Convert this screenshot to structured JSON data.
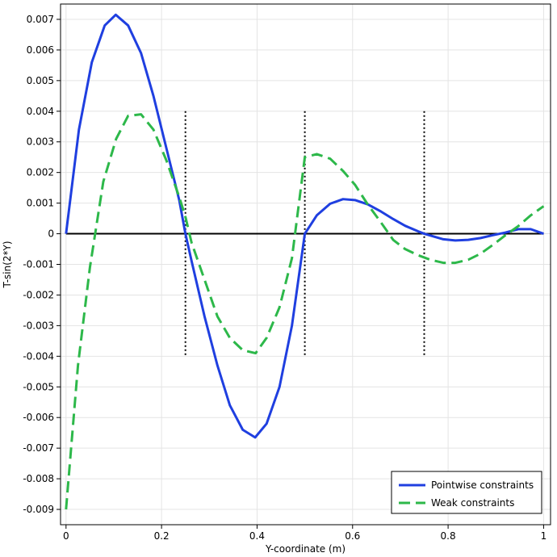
{
  "chart_data": {
    "type": "line",
    "title": "",
    "xlabel": "Y-coordinate (m)",
    "ylabel": "T-sin(2*Y)",
    "xlim": [
      -0.0115,
      1.0145
    ],
    "ylim": [
      -0.0095,
      0.0075
    ],
    "x_ticks": [
      0,
      0.2,
      0.4,
      0.6,
      0.8,
      1
    ],
    "x_tick_labels": [
      "0",
      "0.2",
      "0.4",
      "0.6",
      "0.8",
      "1"
    ],
    "y_ticks": [
      -0.009,
      -0.008,
      -0.007,
      -0.006,
      -0.005,
      -0.004,
      -0.003,
      -0.002,
      -0.001,
      0,
      0.001,
      0.002,
      0.003,
      0.004,
      0.005,
      0.006,
      0.007
    ],
    "y_tick_labels": [
      "-0.009",
      "-0.008",
      "-0.007",
      "-0.006",
      "-0.005",
      "-0.004",
      "-0.003",
      "-0.002",
      "-0.001",
      "0",
      "0.001",
      "0.002",
      "0.003",
      "0.004",
      "0.005",
      "0.006",
      "0.007"
    ],
    "grid": true,
    "legend_position": "bottom-right",
    "series": [
      {
        "name": "Pointwise constraints",
        "color": "#1f3fe0",
        "style": "solid",
        "x": [
          0,
          0.027,
          0.054,
          0.081,
          0.104,
          0.13,
          0.157,
          0.183,
          0.21,
          0.237,
          0.25,
          0.263,
          0.29,
          0.317,
          0.343,
          0.37,
          0.396,
          0.42,
          0.447,
          0.473,
          0.5,
          0.525,
          0.553,
          0.58,
          0.605,
          0.632,
          0.66,
          0.685,
          0.71,
          0.737,
          0.75,
          0.763,
          0.79,
          0.815,
          0.842,
          0.868,
          0.893,
          0.92,
          0.947,
          0.973,
          1
        ],
        "y": [
          0,
          0.0034,
          0.0056,
          0.0068,
          0.00715,
          0.0068,
          0.0059,
          0.0045,
          0.0028,
          0.0011,
          0,
          -0.0009,
          -0.0027,
          -0.0043,
          -0.0056,
          -0.0064,
          -0.00665,
          -0.0062,
          -0.005,
          -0.003,
          0,
          0.0006,
          0.00098,
          0.00113,
          0.0011,
          0.00096,
          0.00072,
          0.00048,
          0.00026,
          8e-05,
          0,
          -6e-05,
          -0.00018,
          -0.00022,
          -0.0002,
          -0.00014,
          -5e-05,
          4e-05,
          0.00015,
          0.00015,
          0
        ]
      },
      {
        "name": "Weak constraints",
        "color": "#2db84a",
        "style": "dashed",
        "x": [
          0,
          0.025,
          0.05,
          0.078,
          0.105,
          0.13,
          0.157,
          0.183,
          0.21,
          0.237,
          0.25,
          0.263,
          0.29,
          0.317,
          0.343,
          0.37,
          0.397,
          0.42,
          0.447,
          0.473,
          0.5,
          0.525,
          0.553,
          0.58,
          0.605,
          0.632,
          0.658,
          0.685,
          0.71,
          0.737,
          0.763,
          0.79,
          0.815,
          0.842,
          0.868,
          0.895,
          0.92,
          0.947,
          0.973,
          1
        ],
        "y": [
          -0.009,
          -0.0043,
          -0.0011,
          0.0017,
          0.0031,
          0.00385,
          0.0039,
          0.0034,
          0.0024,
          0.0012,
          0.00055,
          -0.0003,
          -0.0015,
          -0.0027,
          -0.0034,
          -0.0038,
          -0.0039,
          -0.0034,
          -0.0024,
          -0.0008,
          0.0025,
          0.0026,
          0.00245,
          0.00205,
          0.0016,
          0.00095,
          0.0004,
          -0.0002,
          -0.0005,
          -0.0007,
          -0.00085,
          -0.00095,
          -0.00095,
          -0.00085,
          -0.00065,
          -0.00035,
          -5e-05,
          0.00025,
          0.0006,
          0.0009
        ]
      }
    ],
    "reference_lines": {
      "vertical_x": [
        0.25,
        0.5,
        0.75
      ],
      "vertical_y_range": [
        -0.004,
        0.004
      ],
      "vertical_color": "#000000",
      "vertical_style": "dotted",
      "zero_line_color": "#000000"
    }
  }
}
